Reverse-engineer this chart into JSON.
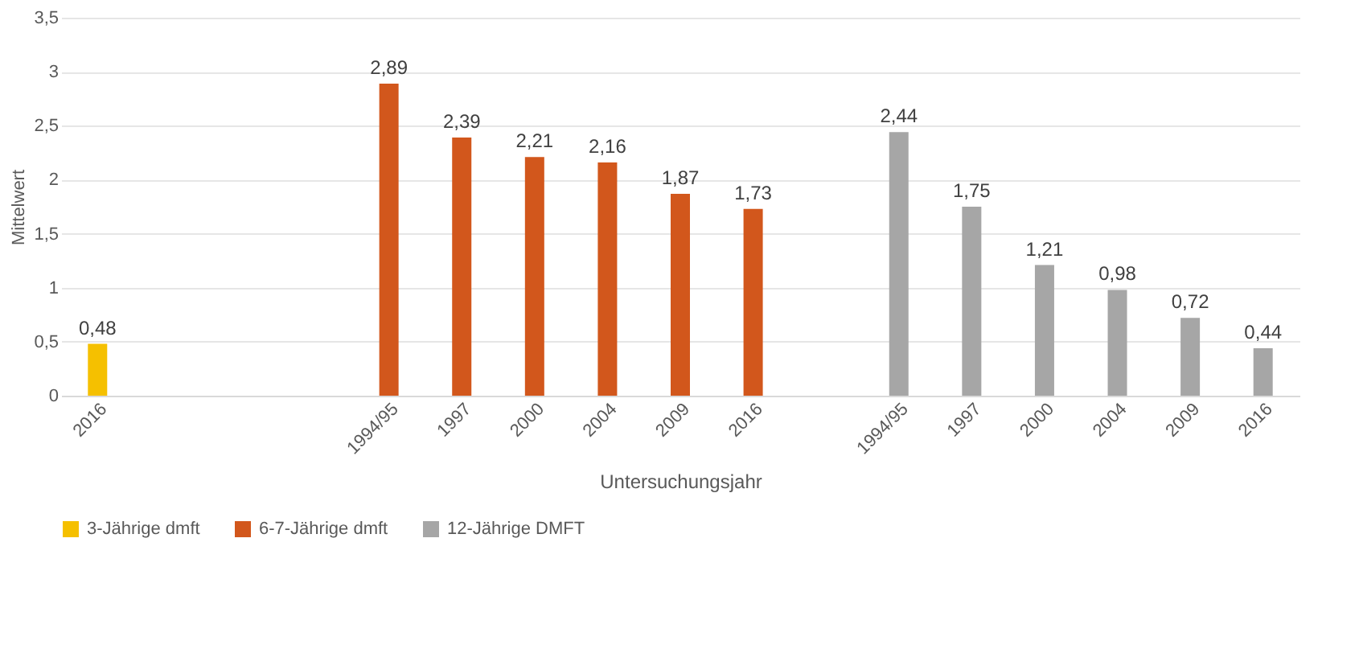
{
  "chart_data": {
    "type": "bar",
    "xlabel": "Untersuchungsjahr",
    "ylabel": "Mittelwert",
    "categories": [
      "2016",
      null,
      null,
      null,
      "1994/95",
      "1997",
      "2000",
      "2004",
      "2009",
      "2016",
      null,
      "1994/95",
      "1997",
      "2000",
      "2004",
      "2009",
      "2016"
    ],
    "series": [
      {
        "name": "3-Jährige dmft",
        "color": "#f5c000",
        "values": [
          0.48,
          null,
          null,
          null,
          null,
          null,
          null,
          null,
          null,
          null,
          null,
          null,
          null,
          null,
          null,
          null,
          null
        ],
        "value_labels": [
          "0,48",
          null,
          null,
          null,
          null,
          null,
          null,
          null,
          null,
          null,
          null,
          null,
          null,
          null,
          null,
          null,
          null
        ]
      },
      {
        "name": "6-7-Jährige dmft",
        "color": "#d2571c",
        "values": [
          null,
          null,
          null,
          null,
          2.89,
          2.39,
          2.21,
          2.16,
          1.87,
          1.73,
          null,
          null,
          null,
          null,
          null,
          null,
          null
        ],
        "value_labels": [
          null,
          null,
          null,
          null,
          "2,89",
          "2,39",
          "2,21",
          "2,16",
          "1,87",
          "1,73",
          null,
          null,
          null,
          null,
          null,
          null,
          null
        ]
      },
      {
        "name": "12-Jährige DMFT",
        "color": "#a6a6a6",
        "values": [
          null,
          null,
          null,
          null,
          null,
          null,
          null,
          null,
          null,
          null,
          null,
          2.44,
          1.75,
          1.21,
          0.98,
          0.72,
          0.44
        ],
        "value_labels": [
          null,
          null,
          null,
          null,
          null,
          null,
          null,
          null,
          null,
          null,
          null,
          "2,44",
          "1,75",
          "1,21",
          "0,98",
          "0,72",
          "0,44"
        ]
      }
    ],
    "ylim": [
      0,
      3.5
    ],
    "yticks": [
      0,
      {
        "value": 0.5,
        "label": "0,5"
      },
      1,
      {
        "value": 1.5,
        "label": "1,5"
      },
      2,
      {
        "value": 2.5,
        "label": "2,5"
      },
      3,
      {
        "value": 3.5,
        "label": "3,5"
      }
    ],
    "grid": "y",
    "legend": "bottom"
  }
}
